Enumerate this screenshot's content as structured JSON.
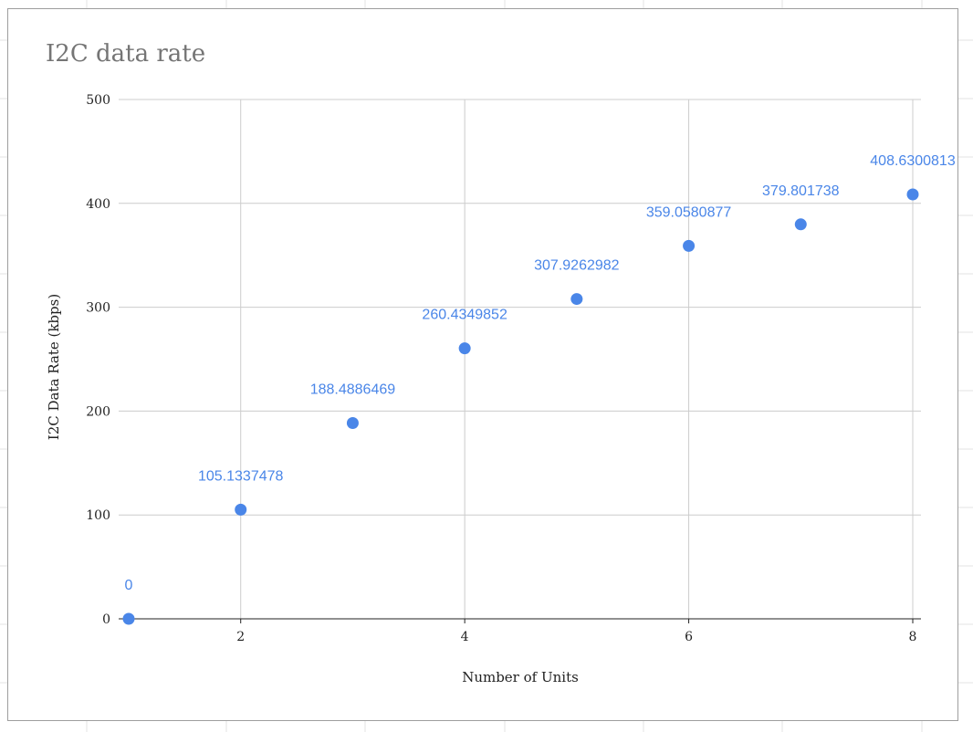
{
  "chart_data": {
    "type": "scatter",
    "title": "I2C data rate",
    "xlabel": "Number of Units",
    "ylabel": "I2C Data Rate (kbps)",
    "xlim": [
      1,
      8
    ],
    "ylim": [
      0,
      500
    ],
    "x_ticks": [
      "2",
      "4",
      "6",
      "8"
    ],
    "y_ticks": [
      "0",
      "100",
      "200",
      "300",
      "400",
      "500"
    ],
    "grid": true,
    "legend": "none",
    "point_color": "#4a86e8",
    "series": [
      {
        "x": [
          1,
          2,
          3,
          4,
          5,
          6,
          7,
          8
        ],
        "y": [
          0,
          105.1337478,
          188.4886469,
          260.4349852,
          307.9262982,
          359.0580877,
          379.801738,
          408.6300813
        ],
        "labels": [
          "0",
          "105.1337478",
          "188.4886469",
          "260.4349852",
          "307.9262982",
          "359.0580877",
          "379.801738",
          "408.6300813"
        ]
      }
    ]
  }
}
